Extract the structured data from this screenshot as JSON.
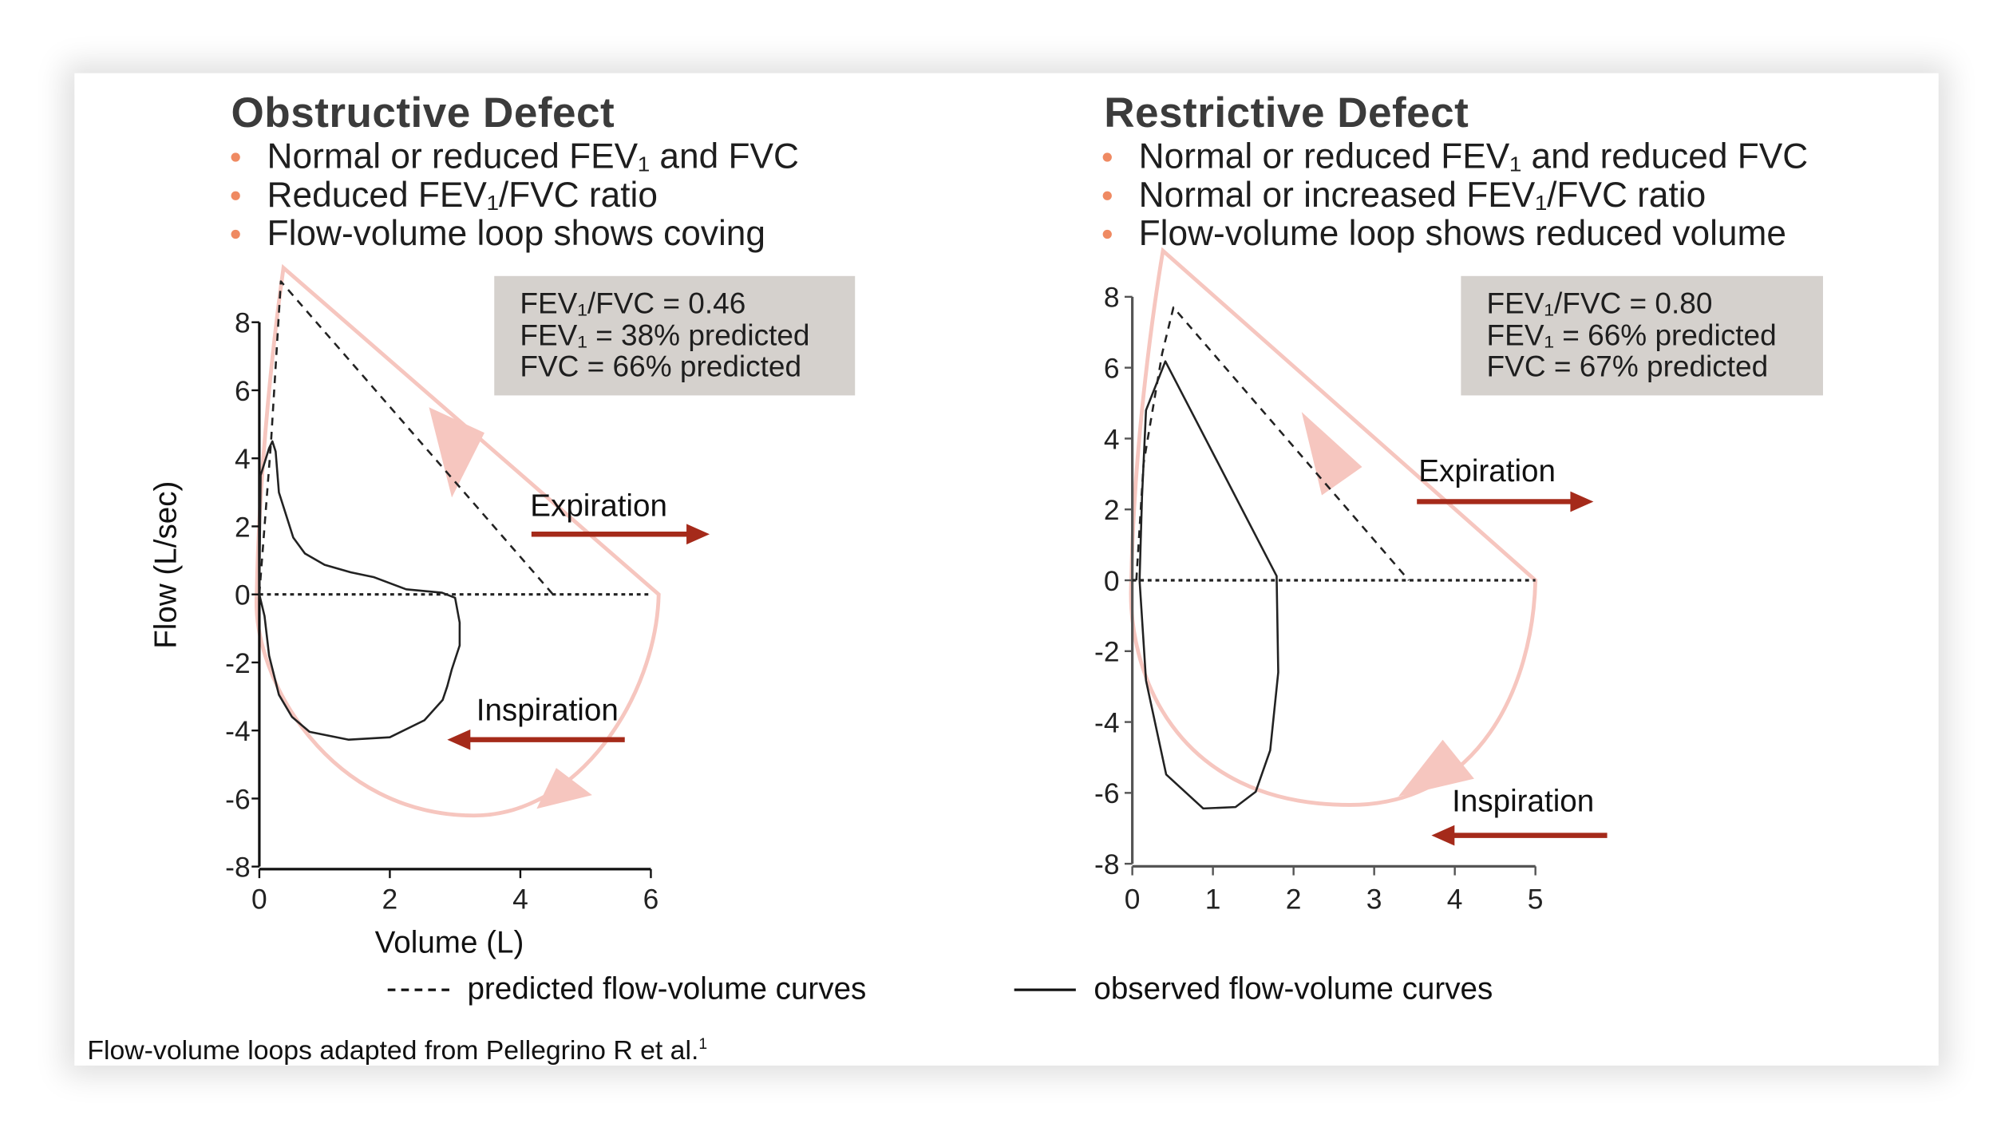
{
  "panels": [
    {
      "title": "Obstructive Defect",
      "bullets": [
        "Normal or reduced FEV₁ and FVC",
        "Reduced FEV₁/FVC ratio",
        "Flow-volume loop shows coving"
      ],
      "stats": [
        "FEV₁/FVC = 0.46",
        "FEV₁ = 38% predicted",
        "FVC = 66% predicted"
      ],
      "expiration_label": "Expiration",
      "inspiration_label": "Inspiration"
    },
    {
      "title": "Restrictive Defect",
      "bullets": [
        "Normal or reduced FEV₁ and reduced FVC",
        "Normal or increased FEV₁/FVC ratio",
        "Flow-volume loop shows reduced volume"
      ],
      "stats": [
        "FEV₁/FVC = 0.80",
        "FEV₁ = 66% predicted",
        "FVC = 67% predicted"
      ],
      "expiration_label": "Expiration",
      "inspiration_label": "Inspiration"
    }
  ],
  "legend": {
    "predicted": "predicted flow-volume curves",
    "observed": "observed flow-volume curves"
  },
  "footnote": "Flow-volume loops adapted from Pellegrino R et al.",
  "footnote_ref": "1",
  "colors": {
    "bullet": "#ef8a62",
    "direction_arrow": "#a52a1a",
    "loop_highlight": "#f6c6bf",
    "stats_box": "#d5d1cd"
  },
  "chart_data": [
    {
      "type": "line",
      "xlabel": "Volume (L)",
      "ylabel": "Flow (L/sec)",
      "xlim": [
        0,
        6
      ],
      "ylim": [
        -8,
        8
      ],
      "xticks": [
        0,
        2,
        4,
        6
      ],
      "yticks": [
        -8,
        -6,
        -4,
        -2,
        0,
        2,
        4,
        6,
        8
      ],
      "grid": false,
      "series": [
        {
          "name": "predicted flow-volume curves",
          "style": "dashed",
          "x": [
            0,
            0.02,
            0.18,
            0.33,
            4.5
          ],
          "y": [
            0,
            0.5,
            4.5,
            9.2,
            0
          ]
        },
        {
          "name": "observed flow-volume curves",
          "style": "solid",
          "x": [
            0,
            0.02,
            0.15,
            0.2,
            0.25,
            0.3,
            0.52,
            0.7,
            1.0,
            1.4,
            1.75,
            2.25,
            2.8,
            3.0,
            3.07,
            3.07,
            2.95,
            2.88,
            2.81,
            2.53,
            2.0,
            1.37,
            0.77,
            0.5,
            0.3,
            0.15,
            0.08,
            0
          ],
          "y": [
            0,
            3.5,
            4.3,
            4.5,
            4.2,
            3.0,
            1.67,
            1.2,
            0.87,
            0.65,
            0.51,
            0.15,
            0.05,
            -0.1,
            -0.83,
            -1.5,
            -2.2,
            -2.7,
            -3.1,
            -3.7,
            -4.2,
            -4.27,
            -4.04,
            -3.6,
            -2.95,
            -1.8,
            -0.64,
            0
          ]
        },
        {
          "name": "zero line",
          "style": "dotted",
          "x": [
            0,
            6
          ],
          "y": [
            0,
            0
          ]
        }
      ]
    },
    {
      "type": "line",
      "xlim": [
        0,
        5
      ],
      "ylim": [
        -8,
        8
      ],
      "xticks": [
        0,
        1,
        2,
        3,
        4,
        5
      ],
      "yticks": [
        -8,
        -6,
        -4,
        -2,
        0,
        2,
        4,
        6,
        8
      ],
      "grid": false,
      "series": [
        {
          "name": "predicted flow-volume curves",
          "style": "dashed",
          "x": [
            0.05,
            0.14,
            0.37,
            0.51,
            3.43
          ],
          "y": [
            0,
            3.3,
            6.4,
            7.7,
            0
          ]
        },
        {
          "name": "observed flow-volume curves",
          "style": "solid",
          "x": [
            0.09,
            0.12,
            0.17,
            0.41,
            1.79,
            1.81,
            1.71,
            1.53,
            1.28,
            0.88,
            0.42,
            0.17,
            0.09
          ],
          "y": [
            0,
            2.34,
            4.8,
            6.18,
            0.12,
            -2.6,
            -4.8,
            -5.97,
            -6.4,
            -6.44,
            -5.48,
            -2.83,
            0
          ]
        },
        {
          "name": "zero line",
          "style": "dotted",
          "x": [
            0,
            5
          ],
          "y": [
            0,
            0
          ]
        }
      ]
    }
  ]
}
